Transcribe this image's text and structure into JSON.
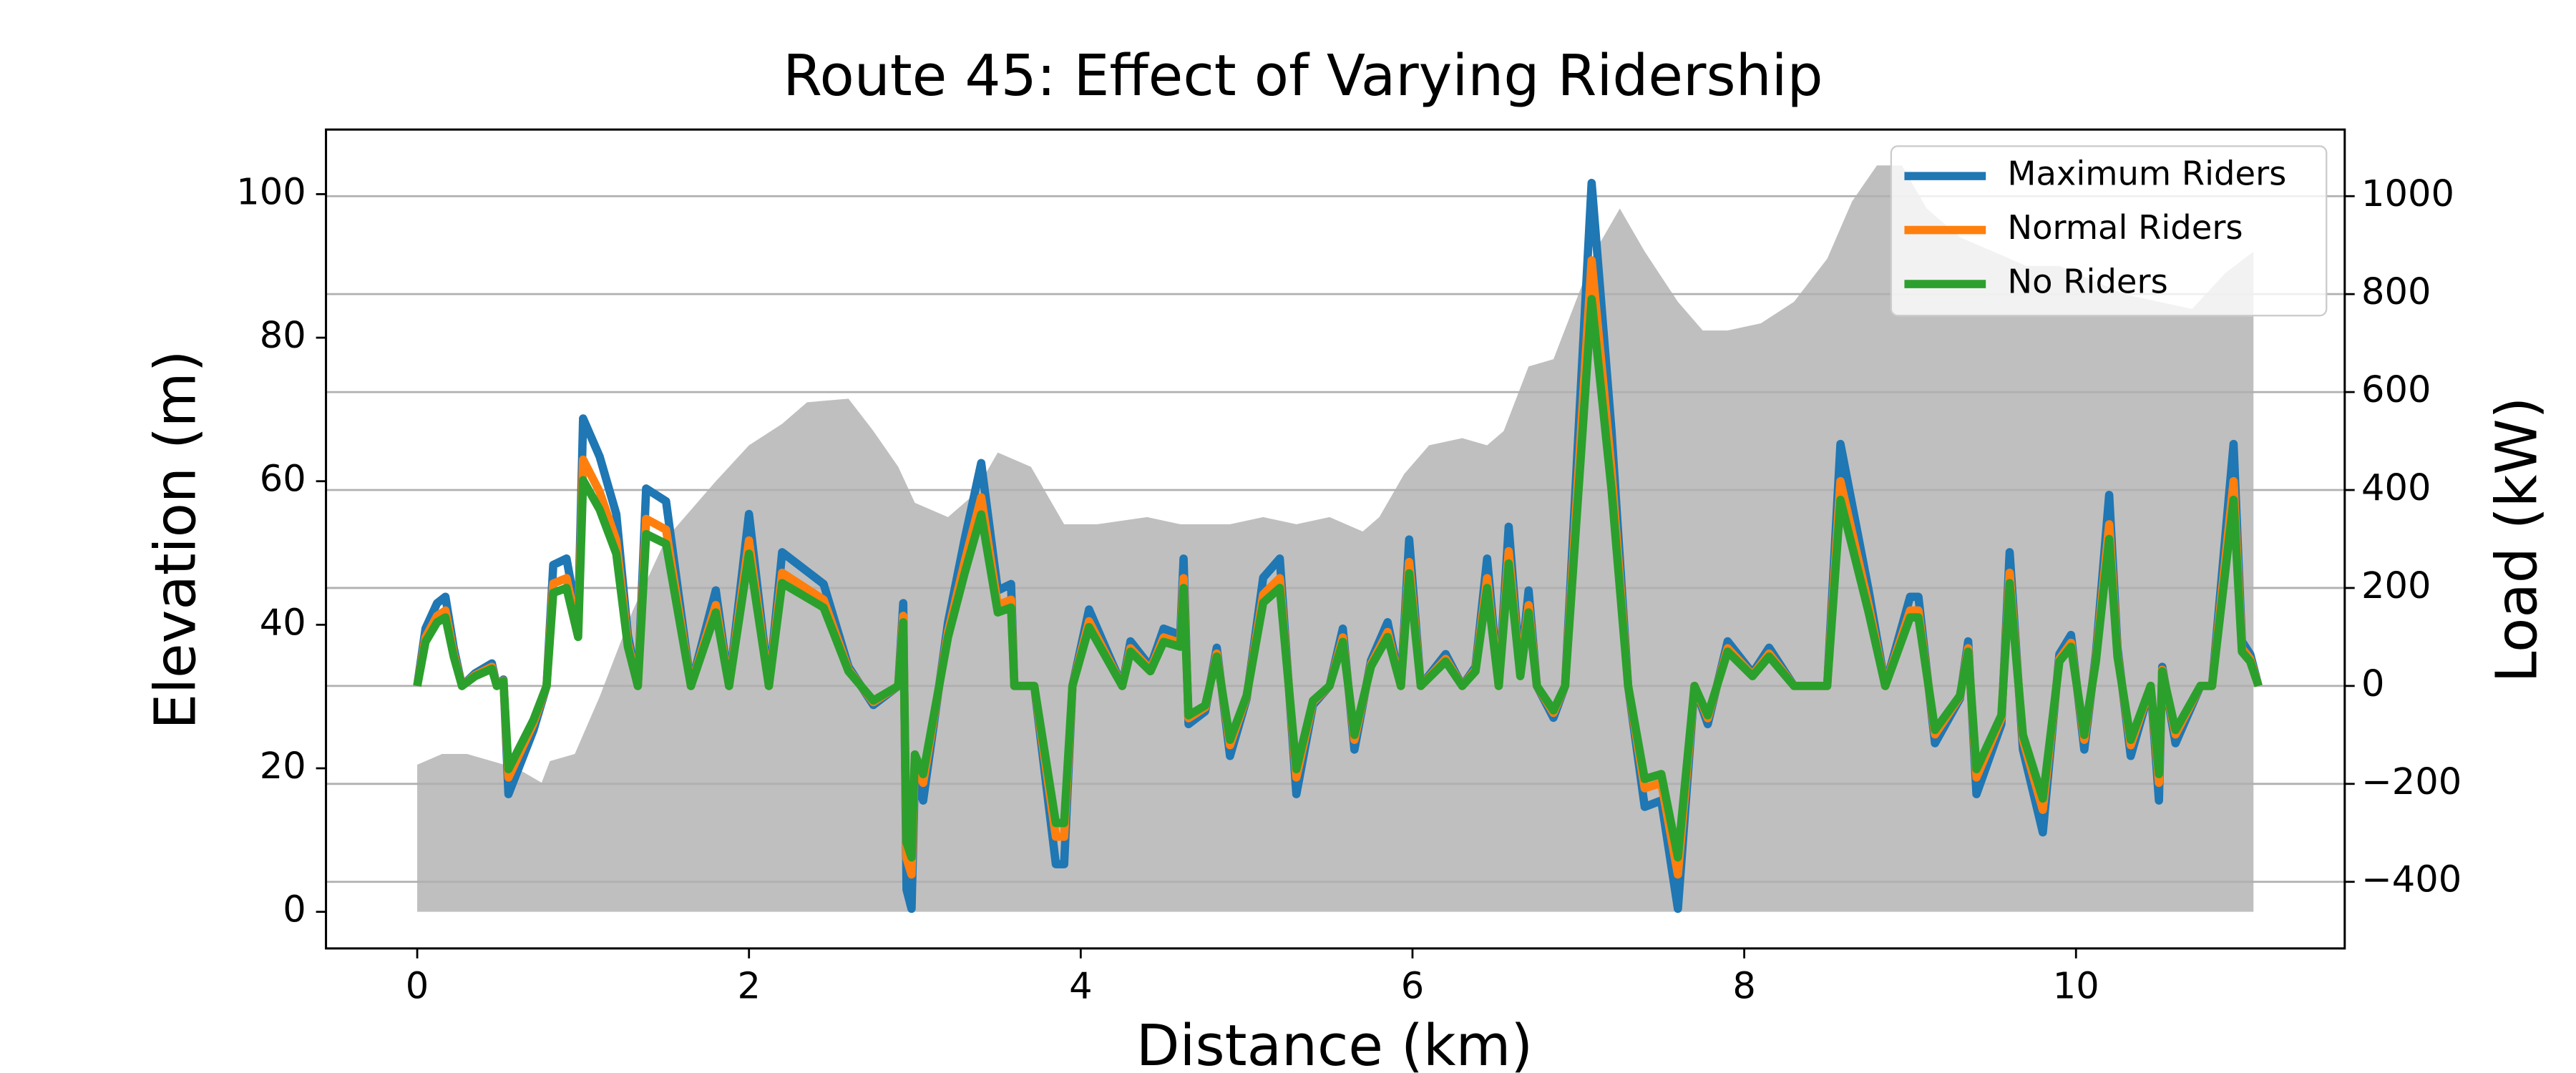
{
  "chart_data": {
    "type": "line",
    "title": "Route 45: Effect of Varying Ridership",
    "x_label": "Distance (km)",
    "y_label": "Elevation (m)",
    "y2_label": "Load (kW)",
    "xlim": [
      -0.55,
      11.62
    ],
    "xticks": [
      0,
      2,
      4,
      6,
      8,
      10
    ],
    "ylim": [
      -5.1,
      109
    ],
    "yticks": [
      0,
      20,
      40,
      60,
      80,
      100
    ],
    "y2lim": [
      -536,
      1136
    ],
    "y2ticks": [
      {
        "value": -400,
        "label": "−400"
      },
      {
        "value": -200,
        "label": "−200"
      },
      0,
      200,
      400,
      600,
      800,
      1000
    ],
    "grid": "y2",
    "legend": "upper right",
    "elevation": {
      "color": "#bfbfbf",
      "x": [
        0,
        0.15,
        0.3,
        0.45,
        0.6,
        0.75,
        0.8,
        0.95,
        1.1,
        1.3,
        1.5,
        1.8,
        2.0,
        2.2,
        2.35,
        2.6,
        2.75,
        2.9,
        3.0,
        3.2,
        3.35,
        3.5,
        3.7,
        3.9,
        4.1,
        4.4,
        4.6,
        4.9,
        5.1,
        5.3,
        5.5,
        5.7,
        5.8,
        5.95,
        6.1,
        6.3,
        6.45,
        6.55,
        6.7,
        6.85,
        6.95,
        7.1,
        7.25,
        7.4,
        7.6,
        7.75,
        7.9,
        8.1,
        8.3,
        8.5,
        8.65,
        8.8,
        8.95,
        9.1,
        9.3,
        9.5,
        9.7,
        9.9,
        10.1,
        10.3,
        10.5,
        10.7,
        10.9,
        11.07
      ],
      "values": [
        20.5,
        22,
        22,
        21,
        20,
        18,
        21,
        22,
        30,
        42,
        52,
        60,
        65,
        68,
        71,
        71.5,
        67,
        62,
        57,
        55,
        58,
        64,
        62,
        54,
        54,
        55,
        54,
        54,
        55,
        54,
        55,
        53,
        55,
        61,
        65,
        66,
        65,
        67,
        76,
        77,
        83,
        92,
        98,
        92,
        85,
        81,
        81,
        82,
        85,
        91,
        99,
        104,
        104,
        98,
        94,
        92,
        90,
        90,
        88,
        86,
        85,
        84,
        89,
        92
      ]
    },
    "x": [
      0,
      0.05,
      0.12,
      0.17,
      0.22,
      0.27,
      0.35,
      0.45,
      0.48,
      0.52,
      0.55,
      0.7,
      0.78,
      0.82,
      0.9,
      0.97,
      1.0,
      1.1,
      1.2,
      1.27,
      1.33,
      1.38,
      1.5,
      1.65,
      1.8,
      1.88,
      2.0,
      2.12,
      2.2,
      2.45,
      2.6,
      2.75,
      2.9,
      2.93,
      2.95,
      2.98,
      3.0,
      3.05,
      3.2,
      3.3,
      3.4,
      3.5,
      3.58,
      3.6,
      3.72,
      3.85,
      3.9,
      3.95,
      4.05,
      4.25,
      4.3,
      4.42,
      4.5,
      4.6,
      4.62,
      4.65,
      4.75,
      4.82,
      4.9,
      5.0,
      5.1,
      5.2,
      5.3,
      5.4,
      5.5,
      5.58,
      5.65,
      5.75,
      5.85,
      5.93,
      5.98,
      6.05,
      6.2,
      6.3,
      6.38,
      6.45,
      6.52,
      6.58,
      6.65,
      6.7,
      6.75,
      6.85,
      6.92,
      7.08,
      7.2,
      7.3,
      7.4,
      7.5,
      7.6,
      7.7,
      7.78,
      7.9,
      8.05,
      8.15,
      8.3,
      8.5,
      8.58,
      8.75,
      8.85,
      9.0,
      9.05,
      9.15,
      9.3,
      9.35,
      9.4,
      9.55,
      9.6,
      9.68,
      9.8,
      9.9,
      9.97,
      10.05,
      10.12,
      10.2,
      10.25,
      10.33,
      10.45,
      10.5,
      10.52,
      10.6,
      10.75,
      10.82,
      10.95,
      11.0,
      11.05,
      11.1
    ],
    "series": [
      {
        "name": "Maximum Riders",
        "color": "#1f77b4",
        "axis": "y2",
        "values": [
          0,
          117,
          169,
          182,
          78,
          0,
          26,
          46,
          0,
          13,
          -221,
          -91,
          0,
          247,
          260,
          130,
          546,
          468,
          351,
          104,
          0,
          403,
          377,
          0,
          195,
          0,
          351,
          0,
          273,
          208,
          39,
          -39,
          0,
          169,
          -416,
          -455,
          -182,
          -234,
          130,
          299,
          455,
          195,
          208,
          0,
          0,
          -364,
          -364,
          0,
          156,
          0,
          91,
          39,
          117,
          104,
          260,
          -78,
          -52,
          78,
          -143,
          -26,
          221,
          260,
          -221,
          -39,
          0,
          117,
          -130,
          52,
          130,
          0,
          299,
          0,
          65,
          0,
          39,
          260,
          0,
          325,
          26,
          195,
          0,
          -65,
          0,
          1027,
          520,
          0,
          -247,
          -234,
          -455,
          0,
          -78,
          91,
          26,
          78,
          0,
          0,
          494,
          195,
          0,
          182,
          182,
          -117,
          -26,
          91,
          -221,
          -78,
          273,
          -130,
          -299,
          65,
          104,
          -130,
          65,
          390,
          78,
          -143,
          0,
          -234,
          39,
          -117,
          0,
          0,
          494,
          91,
          65,
          0
        ]
      },
      {
        "name": "Normal Riders",
        "color": "#ff7f0e",
        "axis": "y2",
        "values": [
          0,
          99,
          143,
          154,
          66,
          0,
          22,
          39,
          0,
          11,
          -187,
          -77,
          0,
          209,
          220,
          110,
          462,
          396,
          297,
          88,
          0,
          341,
          319,
          0,
          165,
          0,
          297,
          0,
          231,
          176,
          33,
          -33,
          0,
          143,
          -352,
          -385,
          -154,
          -198,
          110,
          253,
          385,
          165,
          176,
          0,
          0,
          -308,
          -308,
          0,
          132,
          0,
          77,
          33,
          99,
          88,
          220,
          -66,
          -44,
          66,
          -121,
          -22,
          187,
          220,
          -187,
          -33,
          0,
          99,
          -110,
          44,
          110,
          0,
          253,
          0,
          55,
          0,
          33,
          220,
          0,
          275,
          22,
          165,
          0,
          -55,
          0,
          869,
          440,
          0,
          -209,
          -198,
          -385,
          0,
          -66,
          77,
          22,
          66,
          0,
          0,
          418,
          165,
          0,
          154,
          154,
          -99,
          -22,
          77,
          -187,
          -66,
          231,
          -110,
          -253,
          55,
          88,
          -110,
          55,
          330,
          66,
          -121,
          0,
          -198,
          33,
          -99,
          0,
          0,
          418,
          77,
          55,
          0
        ]
      },
      {
        "name": "No Riders",
        "color": "#2ca02c",
        "axis": "y2",
        "values": [
          0,
          90,
          130,
          140,
          60,
          0,
          20,
          35,
          0,
          10,
          -170,
          -70,
          0,
          190,
          200,
          100,
          420,
          360,
          270,
          80,
          0,
          310,
          290,
          0,
          150,
          0,
          270,
          0,
          210,
          160,
          30,
          -30,
          0,
          130,
          -320,
          -350,
          -140,
          -180,
          100,
          230,
          350,
          150,
          160,
          0,
          0,
          -280,
          -280,
          0,
          120,
          0,
          70,
          30,
          90,
          80,
          200,
          -60,
          -40,
          60,
          -110,
          -20,
          170,
          200,
          -170,
          -30,
          0,
          90,
          -100,
          40,
          100,
          0,
          230,
          0,
          50,
          0,
          30,
          200,
          0,
          250,
          20,
          150,
          0,
          -50,
          0,
          790,
          400,
          0,
          -190,
          -180,
          -350,
          0,
          -60,
          70,
          20,
          60,
          0,
          0,
          380,
          150,
          0,
          140,
          140,
          -90,
          -20,
          70,
          -170,
          -60,
          210,
          -100,
          -230,
          50,
          80,
          -100,
          50,
          300,
          60,
          -110,
          0,
          -180,
          30,
          -90,
          0,
          0,
          380,
          70,
          50,
          0
        ]
      }
    ]
  }
}
